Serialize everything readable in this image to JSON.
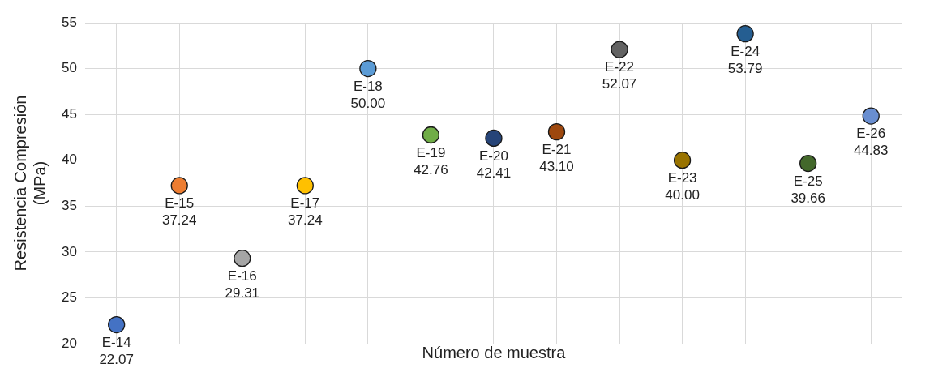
{
  "chart_data": {
    "type": "scatter",
    "xlabel": "Número de muestra",
    "ylabel": "Resistencia Compresión\n(MPa)",
    "categories": [
      null,
      null,
      null,
      null,
      null,
      null,
      null,
      null,
      null,
      null,
      null,
      null,
      null
    ],
    "values": [
      22.07,
      37.24,
      29.31,
      37.24,
      50.0,
      42.76,
      42.41,
      43.1,
      52.07,
      40.0,
      53.79,
      39.66,
      44.83
    ],
    "value_labels": [
      "E-14\n22.07",
      "E-15\n37.24",
      "E-16\n29.31",
      "E-17\n37.24",
      "E-18\n50.00",
      "E-19\n42.76",
      "E-20\n42.41",
      "E-21\n43.10",
      "E-22\n52.07",
      "E-23\n40.00",
      "E-24\n53.79",
      "E-25\n39.66",
      "E-26\n44.83"
    ],
    "colors": [
      "#4472c4",
      "#ed7d31",
      "#a5a5a5",
      "#ffc000",
      "#5b9bd5",
      "#70ad47",
      "#264478",
      "#9e480e",
      "#636363",
      "#997300",
      "#255e91",
      "#43682b",
      "#698ed0"
    ],
    "ylim": [
      20,
      55
    ],
    "yticks": [
      20,
      25,
      30,
      35,
      40,
      45,
      50,
      55
    ],
    "grid": true,
    "marker": "circle",
    "legend": false,
    "tick_labels": "y"
  }
}
